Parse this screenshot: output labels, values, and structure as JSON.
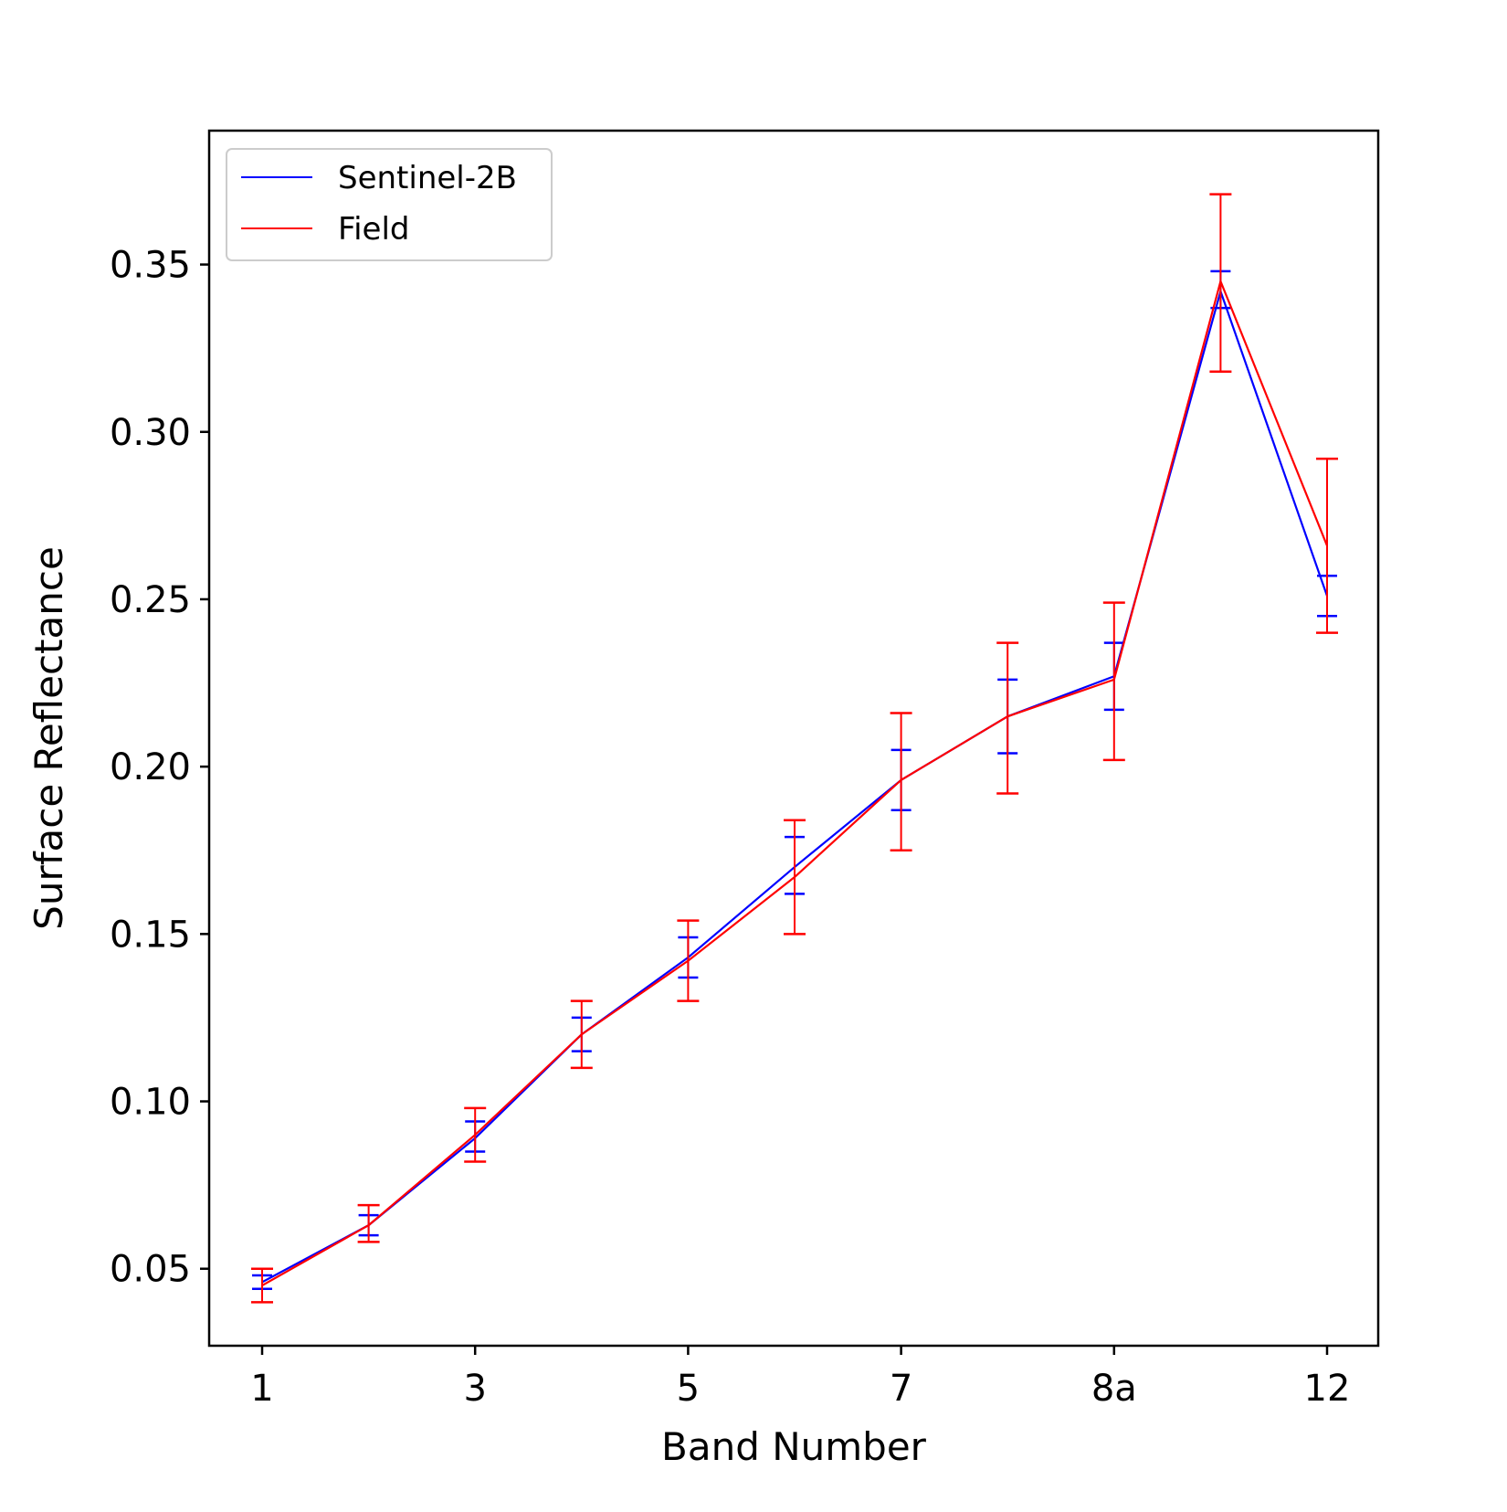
{
  "chart_data": {
    "type": "line",
    "title": "",
    "xlabel": "Band Number",
    "ylabel": "Surface Reflectance",
    "x_tick_labels": [
      "1",
      "3",
      "5",
      "7",
      "8a",
      "12"
    ],
    "y_tick_labels": [
      "0.05",
      "0.10",
      "0.15",
      "0.20",
      "0.25",
      "0.30",
      "0.35"
    ],
    "ylim": [
      0.027,
      0.39
    ],
    "grid": false,
    "legend_position": "top-left",
    "series": [
      {
        "name": "Sentinel-2B",
        "color": "#0000ff",
        "values": [
          0.046,
          0.063,
          0.089,
          0.12,
          0.143,
          0.17,
          0.196,
          0.215,
          0.227,
          0.342,
          0.251
        ],
        "err_low": [
          0.044,
          0.06,
          0.085,
          0.115,
          0.137,
          0.162,
          0.187,
          0.204,
          0.217,
          0.337,
          0.245
        ],
        "err_high": [
          0.048,
          0.066,
          0.094,
          0.125,
          0.149,
          0.179,
          0.205,
          0.226,
          0.237,
          0.348,
          0.257
        ]
      },
      {
        "name": "Field",
        "color": "#ff0000",
        "values": [
          0.045,
          0.063,
          0.09,
          0.12,
          0.142,
          0.167,
          0.196,
          0.215,
          0.226,
          0.345,
          0.266
        ],
        "err_low": [
          0.04,
          0.058,
          0.082,
          0.11,
          0.13,
          0.15,
          0.175,
          0.192,
          0.202,
          0.318,
          0.24
        ],
        "err_high": [
          0.05,
          0.069,
          0.098,
          0.13,
          0.154,
          0.184,
          0.216,
          0.237,
          0.249,
          0.371,
          0.292
        ]
      }
    ]
  }
}
